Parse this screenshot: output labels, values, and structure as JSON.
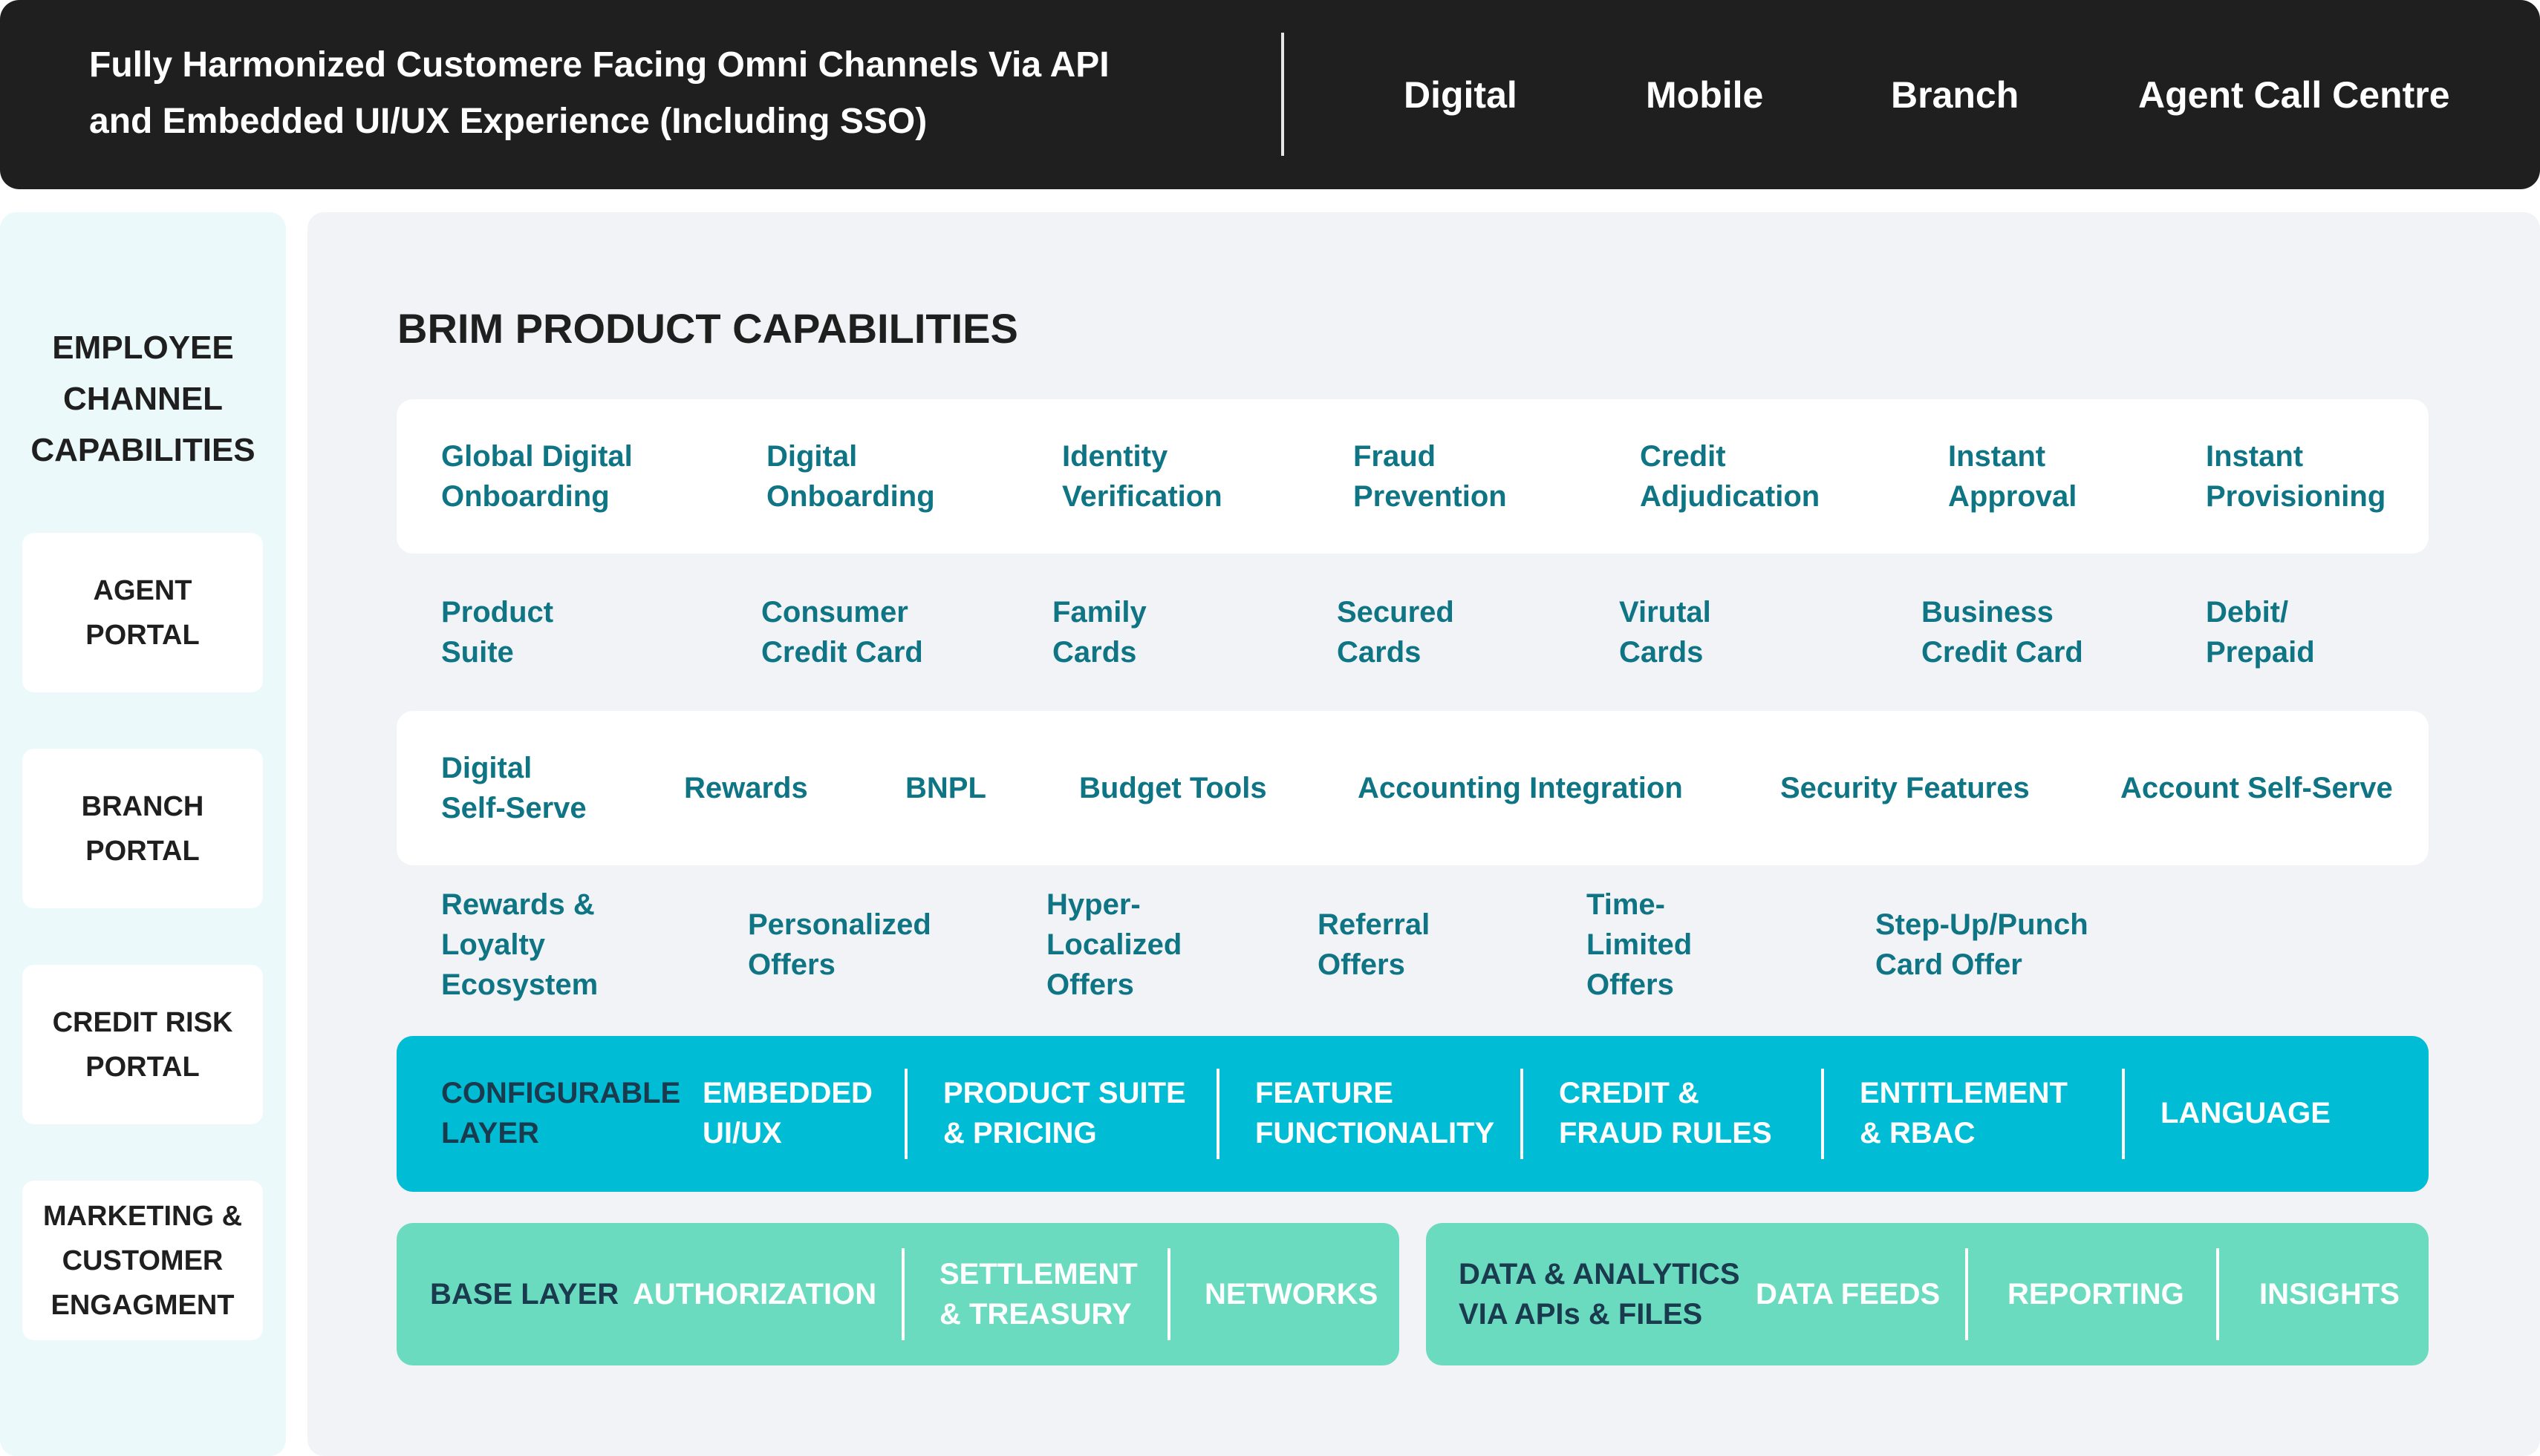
{
  "header": {
    "line1": "Fully Harmonized Customere Facing Omni Channels Via API",
    "line2": "and Embedded UI/UX Experience (Including SSO)",
    "channels": [
      "Digital",
      "Mobile",
      "Branch",
      "Agent Call Centre"
    ]
  },
  "employee": {
    "title": "EMPLOYEE\nCHANNEL\nCAPABILITIES",
    "portals": [
      "AGENT\nPORTAL",
      "BRANCH\nPORTAL",
      "CREDIT RISK\nPORTAL",
      "MARKETING &\nCUSTOMER\nENGAGMENT"
    ]
  },
  "product": {
    "title": "BRIM PRODUCT CAPABILITIES",
    "rows": [
      [
        "Global Digital\nOnboarding",
        "Digital\nOnboarding",
        "Identity\nVerification",
        "Fraud\nPrevention",
        "Credit\nAdjudication",
        "Instant\nApproval",
        "Instant\nProvisioning"
      ],
      [
        "Product\nSuite",
        "Consumer\nCredit Card",
        "Family\nCards",
        "Secured\nCards",
        "Virutal\nCards",
        "Business\nCredit Card",
        "Debit/\nPrepaid"
      ],
      [
        "Digital\nSelf-Serve",
        "Rewards",
        "BNPL",
        "Budget Tools",
        "Accounting Integration",
        "Security Features",
        "Account Self-Serve"
      ],
      [
        "Rewards &\nLoyalty\nEcosystem",
        "Personalized\nOffers",
        "Hyper-\nLocalized\nOffers",
        "Referral\nOffers",
        "Time-\nLimited\nOffers",
        "Step-Up/Punch\nCard Offer"
      ]
    ]
  },
  "configurable": {
    "label": "CONFIGURABLE\nLAYER",
    "items": [
      "EMBEDDED\nUI/UX",
      "PRODUCT SUITE\n& PRICING",
      "FEATURE\nFUNCTIONALITY",
      "CREDIT &\nFRAUD RULES",
      "ENTITLEMENT\n& RBAC",
      "LANGUAGE"
    ]
  },
  "base": {
    "label": "BASE LAYER",
    "items": [
      "AUTHORIZATION",
      "SETTLEMENT\n& TREASURY",
      "NETWORKS"
    ]
  },
  "analytics": {
    "label": "DATA & ANALYTICS\nVIA APIs & FILES",
    "items": [
      "DATA FEEDS",
      "REPORTING",
      "INSIGHTS"
    ]
  },
  "colors": {
    "banner": "#1f1f1f",
    "capability_text": "#0f7584",
    "configurable_layer": "#00bcd4",
    "base_layer": "#6bdbc0",
    "panel_bg": "#f1f3f7",
    "left_bg": "#ecf9fb"
  }
}
